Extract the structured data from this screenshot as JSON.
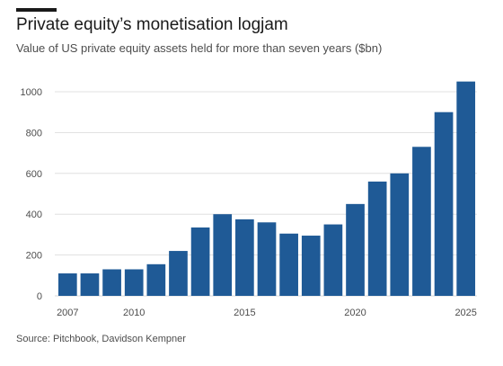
{
  "header": {
    "title": "Private equity’s monetisation logjam",
    "subtitle": "Value of US private equity assets held for more than seven years ($bn)"
  },
  "footer": {
    "source": "Source: Pitchbook, Davidson Kempner"
  },
  "colors": {
    "bar": "#1f5a96",
    "grid": "#d9d9d9",
    "text": "#4d4d4d"
  },
  "chart_data": {
    "type": "bar",
    "title": "Private equity’s monetisation logjam",
    "subtitle": "Value of US private equity assets held for more than seven years ($bn)",
    "xlabel": "",
    "ylabel": "",
    "categories": [
      "2007",
      "2008",
      "2009",
      "2010",
      "2011",
      "2012",
      "2013",
      "2014",
      "2015",
      "2016",
      "2017",
      "2018",
      "2019",
      "2020",
      "2021",
      "2022",
      "2023",
      "2024",
      "2025"
    ],
    "values": [
      110,
      110,
      130,
      130,
      155,
      220,
      335,
      400,
      375,
      360,
      305,
      295,
      350,
      450,
      560,
      600,
      730,
      900,
      1050
    ],
    "x_tick_labels": [
      "2007",
      "2010",
      "2015",
      "2020",
      "2025"
    ],
    "y_ticks": [
      0,
      200,
      400,
      600,
      800,
      1000
    ],
    "ylim": [
      0,
      1050
    ],
    "grid": true,
    "legend": "none"
  }
}
